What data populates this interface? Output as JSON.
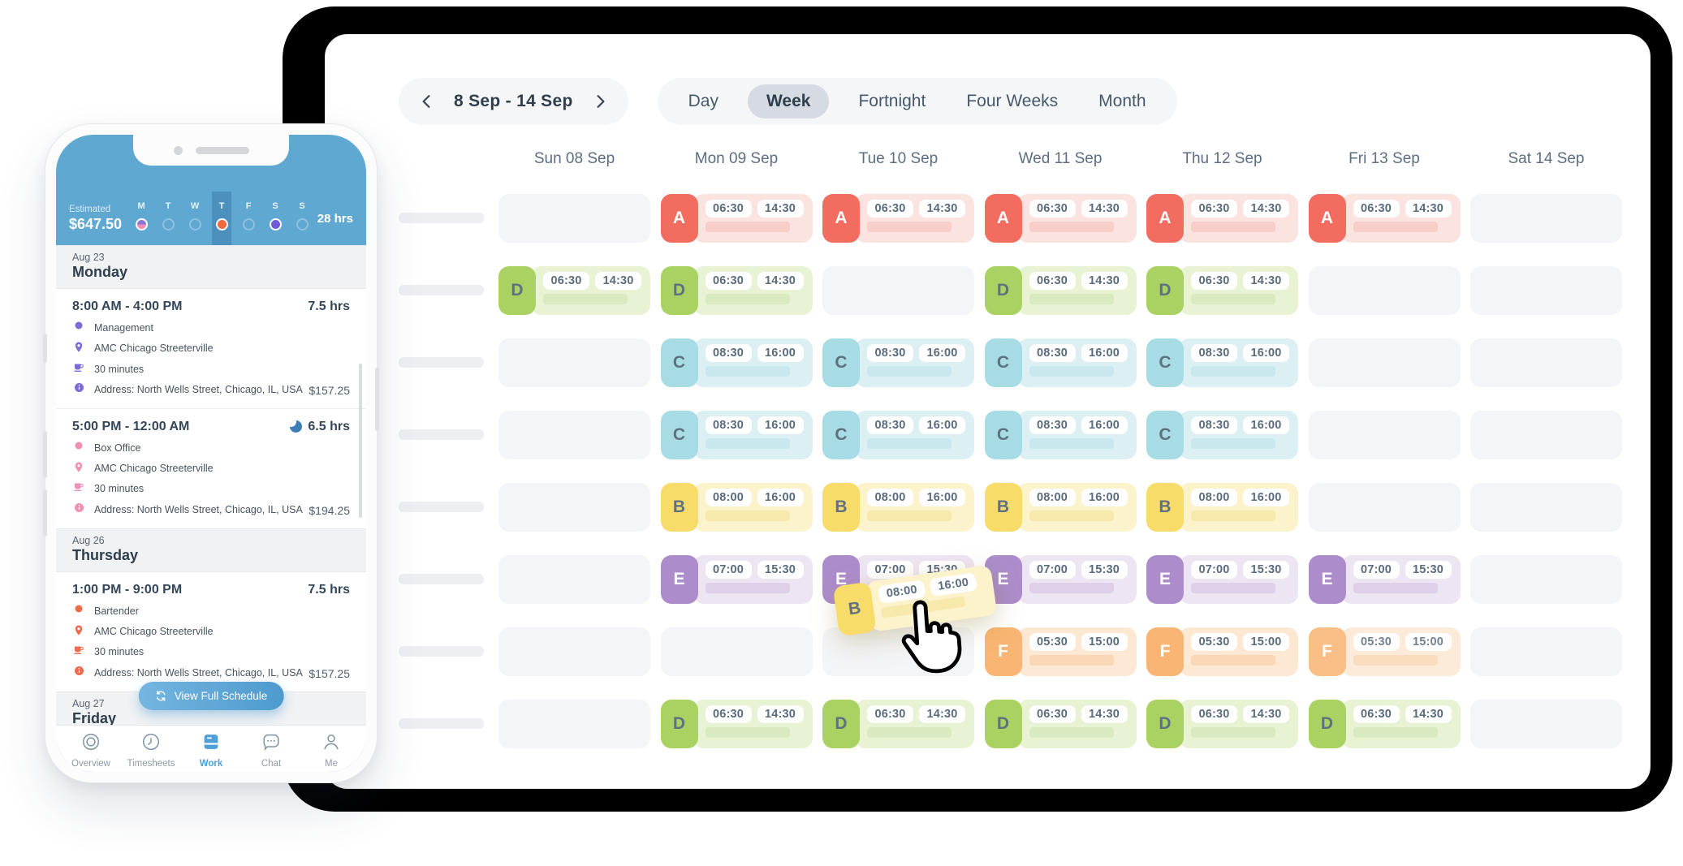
{
  "desktop": {
    "toolbar": {
      "date_range": "8 Sep - 14 Sep",
      "tabs": [
        "Day",
        "Week",
        "Fortnight",
        "Four Weeks",
        "Month"
      ],
      "active_tab": "Week"
    },
    "day_headers": [
      "Sun 08 Sep",
      "Mon 09 Sep",
      "Tue 10 Sep",
      "Wed 11 Sep",
      "Thu 12 Sep",
      "Fri 13 Sep",
      "Sat 14 Sep"
    ],
    "roles": {
      "A": {
        "badge": "#F26C5F",
        "letter": "#FFFFFF",
        "body": "#FBE3E0",
        "bar": "#F8CEC8"
      },
      "B": {
        "badge": "#F8DC6A",
        "letter": "#5F7181",
        "body": "#FCF2CC",
        "bar": "#F7E9AC"
      },
      "C": {
        "badge": "#A7DCE5",
        "letter": "#5F7181",
        "body": "#DCF0F4",
        "bar": "#C8E8EE"
      },
      "D": {
        "badge": "#A9D263",
        "letter": "#5F7181",
        "body": "#E8F3D3",
        "bar": "#DAEAC0"
      },
      "E": {
        "badge": "#AC8CCB",
        "letter": "#FFFFFF",
        "body": "#EDE5F2",
        "bar": "#DFD0EA"
      },
      "F": {
        "badge": "#F9B573",
        "letter": "#FFFFFF",
        "body": "#FDE8D3",
        "bar": "#FAD8B5"
      }
    },
    "rows": [
      {
        "role": "A",
        "start": "06:30",
        "end": "14:30",
        "days": [
          0,
          1,
          1,
          1,
          1,
          1,
          0
        ]
      },
      {
        "role": "D",
        "start": "06:30",
        "end": "14:30",
        "days": [
          1,
          1,
          0,
          1,
          1,
          0,
          0
        ]
      },
      {
        "role": "C",
        "start": "08:30",
        "end": "16:00",
        "days": [
          0,
          1,
          1,
          1,
          1,
          0,
          0
        ]
      },
      {
        "role": "C",
        "start": "08:30",
        "end": "16:00",
        "days": [
          0,
          1,
          1,
          1,
          1,
          0,
          0
        ]
      },
      {
        "role": "B",
        "start": "08:00",
        "end": "16:00",
        "days": [
          0,
          1,
          1,
          1,
          1,
          0,
          0
        ]
      },
      {
        "role": "E",
        "start": "07:00",
        "end": "15:30",
        "days": [
          0,
          1,
          1,
          1,
          1,
          1,
          0
        ]
      },
      {
        "role": "F",
        "start": "05:30",
        "end": "15:00",
        "days": [
          0,
          0,
          0,
          1,
          1,
          1,
          0
        ]
      },
      {
        "role": "D",
        "start": "06:30",
        "end": "14:30",
        "days": [
          0,
          1,
          1,
          1,
          1,
          1,
          0
        ]
      }
    ],
    "drag": {
      "role": "B",
      "start": "08:00",
      "end": "16:00"
    }
  },
  "phone": {
    "header": {
      "estimated_label": "Estimated",
      "estimated_value": "$647.50",
      "total": "28 hrs",
      "days": [
        {
          "label": "M",
          "state": "split"
        },
        {
          "label": "T",
          "state": "hollow"
        },
        {
          "label": "W",
          "state": "hollow"
        },
        {
          "label": "T",
          "state": "active"
        },
        {
          "label": "F",
          "state": "hollow"
        },
        {
          "label": "S",
          "state": "filled"
        },
        {
          "label": "S",
          "state": "hollow"
        }
      ]
    },
    "sections": [
      {
        "date": "Aug 23",
        "day": "Monday",
        "shifts": [
          {
            "time": "8:00 AM - 4:00 PM",
            "hours": "7.5 hrs",
            "night": false,
            "color": "#7E6AD8",
            "role": "Management",
            "location": "AMC Chicago Streeterville",
            "break": "30 minutes",
            "address": "Address: North Wells Street, Chicago, IL, USA",
            "pay": "$157.25"
          },
          {
            "time": "5:00 PM - 12:00 AM",
            "hours": "6.5 hrs",
            "night": true,
            "color": "#F090B5",
            "role": "Box Office",
            "location": "AMC Chicago Streeterville",
            "break": "30 minutes",
            "address": "Address: North Wells Street, Chicago, IL, USA",
            "pay": "$194.25"
          }
        ]
      },
      {
        "date": "Aug 26",
        "day": "Thursday",
        "shifts": [
          {
            "time": "1:00 PM - 9:00 PM",
            "hours": "7.5 hrs",
            "night": false,
            "color": "#EE6B4E",
            "role": "Bartender",
            "location": "AMC Chicago Streeterville",
            "break": "30 minutes",
            "address": "Address: North Wells Street, Chicago, IL, USA",
            "pay": "$157.25"
          }
        ]
      },
      {
        "date": "Aug 27",
        "day": "Friday",
        "shifts": []
      }
    ],
    "cta": "View Full Schedule",
    "nav": [
      {
        "label": "Overview",
        "icon": "overview",
        "active": false
      },
      {
        "label": "Timesheets",
        "icon": "timesheets",
        "active": false
      },
      {
        "label": "Work",
        "icon": "work",
        "active": true
      },
      {
        "label": "Chat",
        "icon": "chat",
        "active": false
      },
      {
        "label": "Me",
        "icon": "me",
        "active": false
      }
    ]
  }
}
